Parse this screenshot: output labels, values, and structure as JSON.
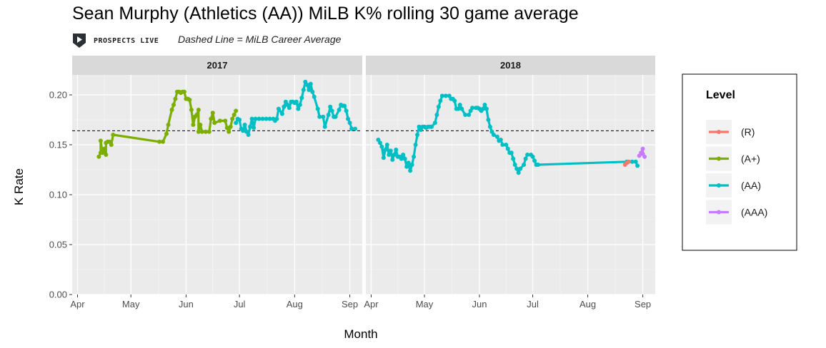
{
  "header": {
    "title": "Sean Murphy (Athletics (AA)) MiLB K% rolling 30 game average",
    "logo_text": "PROSPECTS LIVE",
    "subtitle": "Dashed Line = MiLB Career Average"
  },
  "chart_data": {
    "type": "line",
    "xlabel": "Month",
    "ylabel": "K Rate",
    "ylim": [
      0,
      0.22
    ],
    "yticks": [
      0.0,
      0.05,
      0.1,
      0.15,
      0.2
    ],
    "ytick_labels": [
      "0.00",
      "0.05",
      "0.10",
      "0.15",
      "0.20"
    ],
    "reference_line": {
      "value": 0.164,
      "style": "dashed",
      "label": "MiLB Career Average"
    },
    "legend": {
      "title": "Level",
      "entries": [
        {
          "name": "(R)",
          "color": "#F8766D"
        },
        {
          "name": "(A+)",
          "color": "#7CAE00"
        },
        {
          "name": "(AA)",
          "color": "#00BFC4"
        },
        {
          "name": "(AAA)",
          "color": "#C77CFF"
        }
      ]
    },
    "facets": [
      {
        "label": "2017",
        "xlim": [
          -3,
          160
        ],
        "xticks": [
          {
            "day": 0,
            "label": "Apr"
          },
          {
            "day": 30,
            "label": "May"
          },
          {
            "day": 61,
            "label": "Jun"
          },
          {
            "day": 91,
            "label": "Jul"
          },
          {
            "day": 122,
            "label": "Aug"
          },
          {
            "day": 153,
            "label": "Sep"
          }
        ],
        "series": [
          {
            "name": "(A+)",
            "points": [
              [
                12,
                0.138
              ],
              [
                13,
                0.142
              ],
              [
                13,
                0.154
              ],
              [
                14,
                0.142
              ],
              [
                15,
                0.146
              ],
              [
                16,
                0.14
              ],
              [
                16,
                0.152
              ],
              [
                17,
                0.153
              ],
              [
                18,
                0.153
              ],
              [
                19,
                0.15
              ],
              [
                20,
                0.16
              ],
              [
                46,
                0.153
              ],
              [
                48,
                0.153
              ],
              [
                50,
                0.161
              ],
              [
                51,
                0.17
              ],
              [
                53,
                0.185
              ],
              [
                54,
                0.19
              ],
              [
                55,
                0.196
              ],
              [
                56,
                0.203
              ],
              [
                57,
                0.203
              ],
              [
                58,
                0.202
              ],
              [
                59,
                0.203
              ],
              [
                60,
                0.203
              ],
              [
                61,
                0.196
              ],
              [
                62,
                0.196
              ],
              [
                63,
                0.195
              ],
              [
                64,
                0.185
              ],
              [
                65,
                0.17
              ],
              [
                66,
                0.178
              ],
              [
                67,
                0.18
              ],
              [
                68,
                0.185
              ],
              [
                68,
                0.163
              ],
              [
                69,
                0.17
              ],
              [
                70,
                0.163
              ],
              [
                72,
                0.163
              ],
              [
                74,
                0.163
              ],
              [
                75,
                0.176
              ],
              [
                76,
                0.182
              ],
              [
                77,
                0.172
              ],
              [
                80,
                0.174
              ],
              [
                83,
                0.174
              ],
              [
                84,
                0.167
              ],
              [
                85,
                0.163
              ],
              [
                86,
                0.168
              ],
              [
                87,
                0.176
              ],
              [
                88,
                0.18
              ],
              [
                89,
                0.184
              ]
            ]
          },
          {
            "name": "(AA)",
            "points": [
              [
                89,
                0.172
              ],
              [
                90,
                0.176
              ],
              [
                91,
                0.175
              ],
              [
                92,
                0.166
              ],
              [
                93,
                0.164
              ],
              [
                94,
                0.17
              ],
              [
                95,
                0.163
              ],
              [
                96,
                0.16
              ],
              [
                97,
                0.168
              ],
              [
                98,
                0.176
              ],
              [
                99,
                0.167
              ],
              [
                100,
                0.176
              ],
              [
                102,
                0.176
              ],
              [
                104,
                0.176
              ],
              [
                106,
                0.176
              ],
              [
                108,
                0.176
              ],
              [
                110,
                0.176
              ],
              [
                111,
                0.174
              ],
              [
                112,
                0.176
              ],
              [
                113,
                0.186
              ],
              [
                115,
                0.181
              ],
              [
                116,
                0.188
              ],
              [
                117,
                0.193
              ],
              [
                118,
                0.19
              ],
              [
                119,
                0.187
              ],
              [
                120,
                0.193
              ],
              [
                121,
                0.193
              ],
              [
                122,
                0.192
              ],
              [
                123,
                0.193
              ],
              [
                124,
                0.186
              ],
              [
                125,
                0.19
              ],
              [
                126,
                0.197
              ],
              [
                127,
                0.205
              ],
              [
                128,
                0.213
              ],
              [
                129,
                0.21
              ],
              [
                130,
                0.205
              ],
              [
                131,
                0.211
              ],
              [
                132,
                0.203
              ],
              [
                133,
                0.198
              ],
              [
                135,
                0.186
              ],
              [
                136,
                0.178
              ],
              [
                138,
                0.178
              ],
              [
                139,
                0.168
              ],
              [
                141,
                0.18
              ],
              [
                142,
                0.188
              ],
              [
                143,
                0.184
              ],
              [
                144,
                0.178
              ],
              [
                145,
                0.178
              ],
              [
                147,
                0.185
              ],
              [
                148,
                0.19
              ],
              [
                149,
                0.189
              ],
              [
                150,
                0.189
              ],
              [
                151,
                0.184
              ],
              [
                152,
                0.176
              ],
              [
                153,
                0.172
              ],
              [
                154,
                0.166
              ],
              [
                156,
                0.166
              ]
            ]
          }
        ]
      },
      {
        "label": "2018",
        "xlim": [
          -3,
          160
        ],
        "xticks": [
          {
            "day": 0,
            "label": "Apr"
          },
          {
            "day": 30,
            "label": "May"
          },
          {
            "day": 61,
            "label": "Jun"
          },
          {
            "day": 91,
            "label": "Jul"
          },
          {
            "day": 122,
            "label": "Aug"
          },
          {
            "day": 153,
            "label": "Sep"
          }
        ],
        "series": [
          {
            "name": "(AA)",
            "points": [
              [
                4,
                0.155
              ],
              [
                5,
                0.152
              ],
              [
                6,
                0.148
              ],
              [
                7,
                0.137
              ],
              [
                8,
                0.145
              ],
              [
                9,
                0.15
              ],
              [
                10,
                0.14
              ],
              [
                11,
                0.144
              ],
              [
                12,
                0.135
              ],
              [
                13,
                0.14
              ],
              [
                14,
                0.145
              ],
              [
                15,
                0.138
              ],
              [
                16,
                0.138
              ],
              [
                17,
                0.136
              ],
              [
                18,
                0.14
              ],
              [
                19,
                0.136
              ],
              [
                20,
                0.128
              ],
              [
                21,
                0.132
              ],
              [
                22,
                0.124
              ],
              [
                23,
                0.13
              ],
              [
                24,
                0.138
              ],
              [
                25,
                0.15
              ],
              [
                26,
                0.16
              ],
              [
                27,
                0.168
              ],
              [
                28,
                0.165
              ],
              [
                29,
                0.168
              ],
              [
                30,
                0.168
              ],
              [
                31,
                0.167
              ],
              [
                32,
                0.168
              ],
              [
                33,
                0.168
              ],
              [
                34,
                0.168
              ],
              [
                36,
                0.172
              ],
              [
                37,
                0.18
              ],
              [
                38,
                0.188
              ],
              [
                39,
                0.194
              ],
              [
                40,
                0.199
              ],
              [
                42,
                0.199
              ],
              [
                44,
                0.199
              ],
              [
                45,
                0.196
              ],
              [
                46,
                0.196
              ],
              [
                47,
                0.194
              ],
              [
                48,
                0.186
              ],
              [
                49,
                0.186
              ],
              [
                50,
                0.19
              ],
              [
                51,
                0.186
              ],
              [
                53,
                0.18
              ],
              [
                55,
                0.18
              ],
              [
                56,
                0.184
              ],
              [
                57,
                0.187
              ],
              [
                59,
                0.187
              ],
              [
                60,
                0.187
              ],
              [
                61,
                0.186
              ],
              [
                62,
                0.184
              ],
              [
                63,
                0.186
              ],
              [
                64,
                0.19
              ],
              [
                65,
                0.186
              ],
              [
                66,
                0.175
              ],
              [
                67,
                0.168
              ],
              [
                68,
                0.163
              ],
              [
                69,
                0.16
              ],
              [
                71,
                0.158
              ],
              [
                72,
                0.154
              ],
              [
                73,
                0.155
              ],
              [
                74,
                0.15
              ],
              [
                76,
                0.15
              ],
              [
                77,
                0.146
              ],
              [
                78,
                0.142
              ],
              [
                79,
                0.142
              ],
              [
                80,
                0.136
              ],
              [
                81,
                0.13
              ],
              [
                82,
                0.126
              ],
              [
                83,
                0.122
              ],
              [
                84,
                0.126
              ],
              [
                86,
                0.13
              ],
              [
                87,
                0.136
              ],
              [
                88,
                0.14
              ],
              [
                90,
                0.14
              ],
              [
                91,
                0.138
              ],
              [
                92,
                0.134
              ],
              [
                93,
                0.13
              ],
              [
                94,
                0.13
              ],
              [
                144,
                0.133
              ],
              [
                147,
                0.133
              ],
              [
                149,
                0.133
              ],
              [
                150,
                0.129
              ]
            ]
          },
          {
            "name": "(R)",
            "points": [
              [
                143,
                0.13
              ],
              [
                144,
                0.132
              ],
              [
                145,
                0.133
              ]
            ]
          },
          {
            "name": "(AAA)",
            "points": [
              [
                151,
                0.139
              ],
              [
                152,
                0.142
              ],
              [
                153,
                0.146
              ],
              [
                153,
                0.141
              ],
              [
                154,
                0.138
              ]
            ]
          }
        ]
      }
    ]
  }
}
